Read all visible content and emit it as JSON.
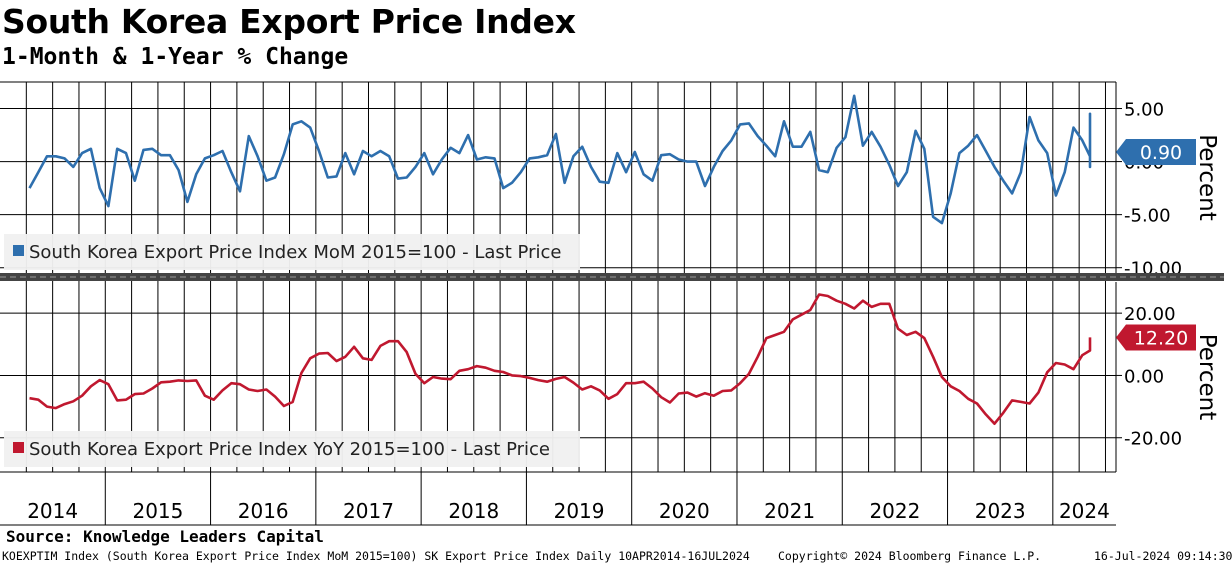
{
  "header": {
    "title": "South Korea Export Price Index",
    "subtitle": "1-Month & 1-Year % Change"
  },
  "footer": {
    "source": "Source: Knowledge Leaders Capital",
    "series_info": "KOEXPTIM Index (South Korea Export Price Index MoM 2015=100) SK Export Price Index  Daily 10APR2014-16JUL2024",
    "copyright": "Copyright© 2024 Bloomberg Finance L.P.",
    "timestamp": "16-Jul-2024 09:14:30"
  },
  "colors": {
    "mom_line": "#2e6fae",
    "yoy_line": "#c0182f",
    "grid": "#000000",
    "separator": "#444444",
    "legend_bg": "#f0f0f0"
  },
  "chart_data": [
    {
      "type": "line",
      "title": "South Korea Export Price Index MoM 2015=100 - Last Price",
      "legend": "South Korea Export Price Index MoM 2015=100 - Last Price",
      "ylabel": "Percent",
      "ylim": [
        -10.5,
        7.5
      ],
      "yticks": [
        5,
        0,
        -5,
        -10
      ],
      "ytick_labels": [
        "5.00",
        "0.00",
        "-5.00",
        "-10.00"
      ],
      "last_value": 0.9,
      "last_label": "0.90",
      "x_start": 2014.28,
      "x_step": 0.08333,
      "values": [
        -2.5,
        -1.0,
        0.5,
        0.5,
        0.3,
        -0.5,
        0.8,
        1.2,
        -2.5,
        -4.2,
        1.2,
        0.8,
        -1.8,
        1.1,
        1.2,
        0.6,
        0.6,
        -0.8,
        -3.8,
        -1.2,
        0.3,
        0.6,
        1.0,
        -1.0,
        -2.8,
        2.4,
        0.5,
        -1.8,
        -1.5,
        0.7,
        3.5,
        3.8,
        3.2,
        1.0,
        -1.5,
        -1.4,
        0.8,
        -1.2,
        1.0,
        0.5,
        1.0,
        0.5,
        -1.6,
        -1.5,
        -0.5,
        0.8,
        -1.2,
        0.2,
        1.3,
        0.8,
        2.5,
        0.2,
        0.4,
        0.3,
        -2.5,
        -2.0,
        -1.0,
        0.3,
        0.4,
        0.6,
        2.6,
        -2.0,
        0.5,
        1.4,
        -0.5,
        -1.9,
        -2.0,
        0.8,
        -1.0,
        0.9,
        -1.2,
        -1.8,
        0.6,
        0.7,
        0.2,
        0.0,
        0.0,
        -2.3,
        -0.5,
        1.0,
        2.0,
        3.5,
        3.6,
        2.4,
        1.5,
        0.5,
        3.8,
        1.4,
        1.4,
        2.8,
        -0.8,
        -1.0,
        1.3,
        2.3,
        6.2,
        1.5,
        2.8,
        1.4,
        -0.3,
        -2.3,
        -1.0,
        2.9,
        1.2,
        -5.2,
        -5.8,
        -3.0,
        0.8,
        1.5,
        2.5,
        1.0,
        -0.5,
        -1.8,
        -3.0,
        -1.0,
        4.2,
        2.0,
        0.8,
        -3.2,
        -1.0,
        3.2,
        2.0,
        0.5,
        4.5,
        -0.5,
        0.9
      ]
    },
    {
      "type": "line",
      "title": "South Korea Export Price Index YoY 2015=100 - Last Price",
      "legend": "South Korea Export Price Index YoY 2015=100 - Last Price",
      "ylabel": "Percent",
      "ylim": [
        -31,
        30
      ],
      "yticks": [
        20,
        0,
        -20
      ],
      "ytick_labels": [
        "20.00",
        "0.00",
        "-20.00"
      ],
      "last_value": 12.2,
      "last_label": "12.20",
      "x_start": 2014.28,
      "x_step": 0.08333,
      "values": [
        -7.3,
        -7.8,
        -10,
        -10.5,
        -9.2,
        -8.3,
        -6.5,
        -3.5,
        -1.5,
        -2.8,
        -8,
        -7.8,
        -6,
        -5.8,
        -4.2,
        -2.2,
        -2,
        -1.6,
        -1.8,
        -1.6,
        -6.5,
        -7.8,
        -4.8,
        -2.5,
        -2.8,
        -4.5,
        -5,
        -4.5,
        -6.8,
        -9.8,
        -8.5,
        0.8,
        5.5,
        7,
        7.2,
        4.6,
        6,
        9.2,
        5.5,
        5,
        9.5,
        11,
        11,
        7.5,
        0.5,
        -2.5,
        -0.5,
        -1,
        -1.2,
        1.5,
        2,
        3,
        2.5,
        1.5,
        1.1,
        0,
        -0.2,
        -0.8,
        -1.5,
        -2,
        -1.1,
        -0.5,
        -2.3,
        -4.5,
        -3.5,
        -4.8,
        -7.5,
        -6,
        -2.5,
        -2.5,
        -2,
        -4.2,
        -7,
        -8.7,
        -5.8,
        -5.5,
        -6.8,
        -5.7,
        -6.5,
        -5,
        -4.8,
        -2.5,
        0.5,
        6,
        12,
        13,
        14,
        18,
        19.5,
        21,
        26,
        25.5,
        24,
        23,
        21.5,
        24,
        22,
        23,
        23,
        15,
        13,
        14,
        12,
        6,
        -0.5,
        -3.5,
        -5,
        -7.5,
        -9,
        -12.5,
        -15.5,
        -12,
        -8,
        -8.5,
        -9,
        -5.5,
        1,
        4,
        3.5,
        2,
        6.5,
        8,
        12.2
      ]
    }
  ],
  "x_axis": {
    "labels": [
      "2014",
      "2015",
      "2016",
      "2017",
      "2018",
      "2019",
      "2020",
      "2021",
      "2022",
      "2023",
      "2024"
    ]
  }
}
